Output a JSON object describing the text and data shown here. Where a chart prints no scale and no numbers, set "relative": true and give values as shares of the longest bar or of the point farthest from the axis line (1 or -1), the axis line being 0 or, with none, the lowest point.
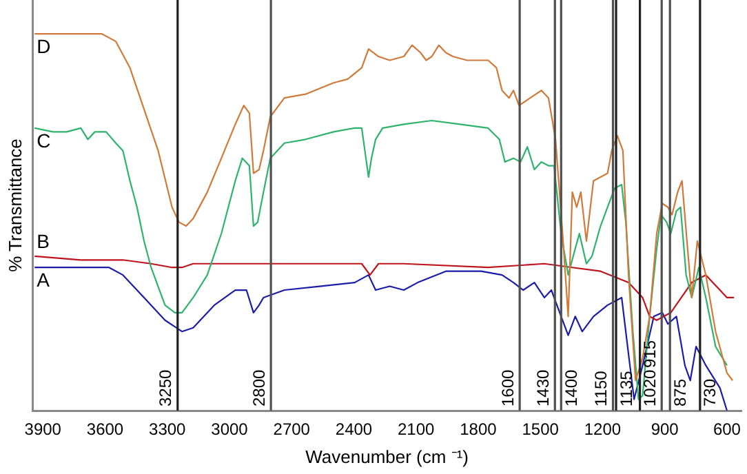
{
  "chart_data": {
    "type": "line",
    "relative": true,
    "xlabel": "Wavenumber (cm ⁻¹)",
    "ylabel": "% Transmittance",
    "xlim": [
      3950,
      530
    ],
    "xticks": [
      3900,
      3600,
      3300,
      3000,
      2700,
      2400,
      2100,
      1800,
      1500,
      1200,
      900,
      600
    ],
    "grid": false,
    "legend": false,
    "marker": "none",
    "line_style": "solid",
    "series": [
      {
        "name": "D",
        "color": "#d07a3a",
        "x": [
          3940,
          3615,
          3548,
          3480,
          3412,
          3344,
          3277,
          3243,
          3209,
          3175,
          3107,
          3039,
          2972,
          2931,
          2904,
          2884,
          2857,
          2836,
          2803,
          2735,
          2633,
          2498,
          2430,
          2362,
          2329,
          2281,
          2227,
          2159,
          2119,
          2078,
          2051,
          2024,
          1990,
          1956,
          1922,
          1854,
          1752,
          1712,
          1685,
          1651,
          1630,
          1603,
          1549,
          1495,
          1461,
          1427,
          1393,
          1366,
          1346,
          1325,
          1305,
          1278,
          1244,
          1210,
          1176,
          1156,
          1129,
          1102,
          1075,
          1041,
          1007,
          973,
          939,
          912,
          885,
          865,
          838,
          817,
          790,
          770,
          743,
          702,
          655,
          600,
          573
        ],
        "values": [
          1.0,
          1.0,
          0.98,
          0.91,
          0.8,
          0.69,
          0.54,
          0.5,
          0.49,
          0.51,
          0.58,
          0.67,
          0.76,
          0.81,
          0.79,
          0.63,
          0.64,
          0.69,
          0.78,
          0.83,
          0.84,
          0.87,
          0.88,
          0.91,
          0.96,
          0.94,
          0.93,
          0.94,
          0.97,
          0.95,
          0.93,
          0.94,
          0.97,
          0.95,
          0.94,
          0.93,
          0.93,
          0.91,
          0.85,
          0.83,
          0.85,
          0.81,
          0.83,
          0.85,
          0.83,
          0.72,
          0.47,
          0.25,
          0.58,
          0.54,
          0.58,
          0.45,
          0.61,
          0.62,
          0.63,
          0.69,
          0.73,
          0.69,
          0.36,
          0.08,
          0.14,
          0.25,
          0.47,
          0.55,
          0.54,
          0.52,
          0.58,
          0.61,
          0.43,
          0.3,
          0.45,
          0.36,
          0.21,
          0.1,
          0.08
        ]
      },
      {
        "name": "C",
        "color": "#2db36b",
        "x": [
          3940,
          3852,
          3785,
          3717,
          3683,
          3649,
          3595,
          3548,
          3514,
          3480,
          3446,
          3412,
          3378,
          3311,
          3263,
          3229,
          3175,
          3107,
          3039,
          2972,
          2938,
          2904,
          2884,
          2864,
          2836,
          2803,
          2735,
          2633,
          2498,
          2396,
          2362,
          2329,
          2315,
          2295,
          2261,
          2159,
          2024,
          1888,
          1752,
          1698,
          1671,
          1630,
          1596,
          1563,
          1529,
          1495,
          1461,
          1434,
          1400,
          1366,
          1332,
          1312,
          1278,
          1251,
          1210,
          1176,
          1142,
          1108,
          1088,
          1054,
          1027,
          1007,
          973,
          939,
          918,
          891,
          871,
          844,
          824,
          797,
          770,
          736,
          702,
          655,
          600
        ],
        "values": [
          0.75,
          0.74,
          0.74,
          0.75,
          0.72,
          0.74,
          0.74,
          0.71,
          0.69,
          0.61,
          0.54,
          0.45,
          0.38,
          0.28,
          0.26,
          0.26,
          0.3,
          0.36,
          0.47,
          0.61,
          0.67,
          0.65,
          0.49,
          0.5,
          0.58,
          0.67,
          0.71,
          0.72,
          0.74,
          0.75,
          0.75,
          0.62,
          0.67,
          0.72,
          0.75,
          0.76,
          0.77,
          0.76,
          0.75,
          0.72,
          0.66,
          0.67,
          0.66,
          0.7,
          0.64,
          0.66,
          0.65,
          0.65,
          0.47,
          0.36,
          0.43,
          0.47,
          0.39,
          0.41,
          0.49,
          0.54,
          0.59,
          0.6,
          0.5,
          0.21,
          0.03,
          0.04,
          0.25,
          0.43,
          0.52,
          0.5,
          0.47,
          0.53,
          0.54,
          0.36,
          0.3,
          0.38,
          0.3,
          0.17,
          0.12
        ]
      },
      {
        "name": "B",
        "color": "#c0141c",
        "x": [
          3940,
          3717,
          3514,
          3378,
          3277,
          3229,
          3175,
          3039,
          2836,
          2362,
          2322,
          2281,
          2159,
          1752,
          1481,
          1346,
          1210,
          1075,
          1007,
          973,
          939,
          871,
          770,
          702,
          634,
          600,
          566
        ],
        "values": [
          0.41,
          0.4,
          0.4,
          0.39,
          0.38,
          0.38,
          0.39,
          0.39,
          0.39,
          0.39,
          0.36,
          0.39,
          0.39,
          0.38,
          0.39,
          0.38,
          0.37,
          0.34,
          0.3,
          0.25,
          0.24,
          0.26,
          0.34,
          0.36,
          0.32,
          0.3,
          0.3
        ]
      },
      {
        "name": "A",
        "color": "#1c1caa",
        "x": [
          3940,
          3649,
          3581,
          3514,
          3412,
          3311,
          3229,
          3175,
          3073,
          2972,
          2918,
          2884,
          2857,
          2836,
          2735,
          2565,
          2396,
          2329,
          2295,
          2227,
          2159,
          2092,
          1956,
          1786,
          1685,
          1630,
          1583,
          1529,
          1481,
          1447,
          1400,
          1366,
          1332,
          1298,
          1244,
          1176,
          1108,
          1075,
          1048,
          1007,
          953,
          912,
          885,
          844,
          803,
          777,
          749,
          702,
          634,
          600
        ],
        "values": [
          0.38,
          0.38,
          0.38,
          0.36,
          0.3,
          0.24,
          0.21,
          0.22,
          0.28,
          0.32,
          0.32,
          0.26,
          0.28,
          0.3,
          0.32,
          0.33,
          0.34,
          0.36,
          0.32,
          0.33,
          0.32,
          0.34,
          0.37,
          0.37,
          0.36,
          0.34,
          0.32,
          0.34,
          0.3,
          0.32,
          0.25,
          0.2,
          0.25,
          0.21,
          0.25,
          0.28,
          0.3,
          0.15,
          0.03,
          0.12,
          0.25,
          0.26,
          0.23,
          0.25,
          0.12,
          0.08,
          0.17,
          0.12,
          0.06,
          0.0
        ]
      }
    ],
    "ref_lines": [
      {
        "axis": "x",
        "value": 3250,
        "label": "3250",
        "color": "#202020"
      },
      {
        "axis": "x",
        "value": 2800,
        "label": "2800",
        "color": "#505050"
      },
      {
        "axis": "x",
        "value": 1600,
        "label": "1600",
        "color": "#505050"
      },
      {
        "axis": "x",
        "value": 1400,
        "label": "1400",
        "color": "#505050"
      },
      {
        "axis": "x",
        "value": 1430,
        "label": "1430",
        "color": "#505050"
      },
      {
        "axis": "x",
        "value": 1150,
        "label": "1150",
        "color": "#505050"
      },
      {
        "axis": "x",
        "value": 1135,
        "label": "1135",
        "color": "#202020"
      },
      {
        "axis": "x",
        "value": 1020,
        "label": "1020",
        "color": "#202020"
      },
      {
        "axis": "x",
        "value": 915,
        "label": "915",
        "color": "#505050"
      },
      {
        "axis": "x",
        "value": 875,
        "label": "875",
        "color": "#505050"
      },
      {
        "axis": "x",
        "value": 730,
        "label": "730",
        "color": "#202020"
      }
    ]
  }
}
